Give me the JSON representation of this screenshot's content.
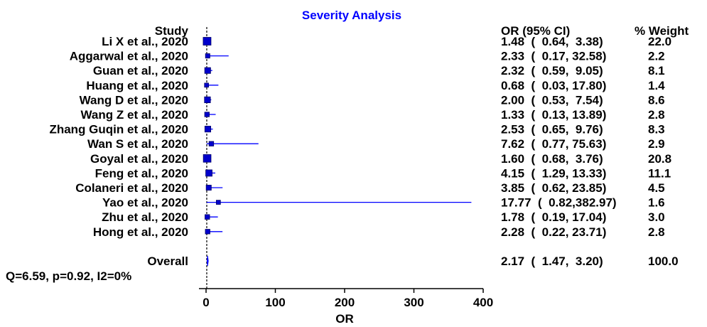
{
  "colors": {
    "accent": "#0000ff",
    "text": "#000000",
    "background": "#ffffff"
  },
  "chart_data": {
    "type": "forest",
    "title": "Severity Analysis",
    "xlabel": "OR",
    "ylabel": "",
    "xlim": [
      0,
      400
    ],
    "xticks": [
      0,
      100,
      200,
      300,
      400
    ],
    "reference_line": 1,
    "headers": {
      "study": "Study",
      "ci": "OR (95% CI)",
      "weight": "% Weight"
    },
    "studies": [
      {
        "name": "Li X et al., 2020",
        "or": 1.48,
        "low": 0.64,
        "high": 3.38,
        "weight": 22.0,
        "ci_text": "1.48  (  0.64,  3.38)",
        "weight_text": "22.0"
      },
      {
        "name": "Aggarwal et al., 2020",
        "or": 2.33,
        "low": 0.17,
        "high": 32.58,
        "weight": 2.2,
        "ci_text": "2.33  (  0.17, 32.58)",
        "weight_text": "2.2"
      },
      {
        "name": "Guan et al., 2020",
        "or": 2.32,
        "low": 0.59,
        "high": 9.05,
        "weight": 8.1,
        "ci_text": "2.32  (  0.59,  9.05)",
        "weight_text": "8.1"
      },
      {
        "name": "Huang et al., 2020",
        "or": 0.68,
        "low": 0.03,
        "high": 17.8,
        "weight": 1.4,
        "ci_text": "0.68  (  0.03, 17.80)",
        "weight_text": "1.4"
      },
      {
        "name": "Wang D et al., 2020",
        "or": 2.0,
        "low": 0.53,
        "high": 7.54,
        "weight": 8.6,
        "ci_text": "2.00  (  0.53,  7.54)",
        "weight_text": "8.6"
      },
      {
        "name": "Wang Z et al., 2020",
        "or": 1.33,
        "low": 0.13,
        "high": 13.89,
        "weight": 2.8,
        "ci_text": "1.33  (  0.13, 13.89)",
        "weight_text": "2.8"
      },
      {
        "name": "Zhang Guqin et al., 2020",
        "or": 2.53,
        "low": 0.65,
        "high": 9.76,
        "weight": 8.3,
        "ci_text": "2.53  (  0.65,  9.76)",
        "weight_text": "8.3"
      },
      {
        "name": "Wan S et al., 2020",
        "or": 7.62,
        "low": 0.77,
        "high": 75.63,
        "weight": 2.9,
        "ci_text": "7.62  (  0.77, 75.63)",
        "weight_text": "2.9"
      },
      {
        "name": "Goyal et al., 2020",
        "or": 1.6,
        "low": 0.68,
        "high": 3.76,
        "weight": 20.8,
        "ci_text": "1.60  (  0.68,  3.76)",
        "weight_text": "20.8"
      },
      {
        "name": "Feng et al., 2020",
        "or": 4.15,
        "low": 1.29,
        "high": 13.33,
        "weight": 11.1,
        "ci_text": "4.15  (  1.29, 13.33)",
        "weight_text": "11.1"
      },
      {
        "name": "Colaneri et al., 2020",
        "or": 3.85,
        "low": 0.62,
        "high": 23.85,
        "weight": 4.5,
        "ci_text": "3.85  (  0.62, 23.85)",
        "weight_text": "4.5"
      },
      {
        "name": "Yao et al., 2020",
        "or": 17.77,
        "low": 0.82,
        "high": 382.97,
        "weight": 1.6,
        "ci_text": "17.77  (  0.82,382.97)",
        "weight_text": "1.6"
      },
      {
        "name": "Zhu et al., 2020",
        "or": 1.78,
        "low": 0.19,
        "high": 17.04,
        "weight": 3.0,
        "ci_text": "1.78  (  0.19, 17.04)",
        "weight_text": "3.0"
      },
      {
        "name": "Hong et al., 2020",
        "or": 2.28,
        "low": 0.22,
        "high": 23.71,
        "weight": 2.8,
        "ci_text": "2.28  (  0.22, 23.71)",
        "weight_text": "2.8"
      }
    ],
    "overall": {
      "name": "Overall",
      "or": 2.17,
      "low": 1.47,
      "high": 3.2,
      "weight": 100.0,
      "ci_text": "2.17  (  1.47,  3.20)",
      "weight_text": "100.0"
    },
    "heterogeneity": "Q=6.59, p=0.92, I2=0%"
  }
}
